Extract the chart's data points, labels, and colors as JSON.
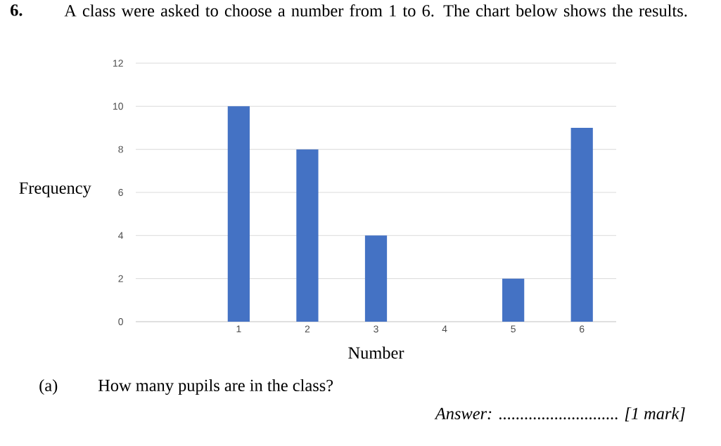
{
  "chart_data": {
    "type": "bar",
    "title": "A class were asked to choose a number from 1 to 6. The chart below shows the results.",
    "xlabel": "Number",
    "ylabel": "Frequency",
    "categories": [
      null,
      "1",
      "2",
      "3",
      "4",
      "5",
      "6"
    ],
    "values": [
      null,
      10,
      8,
      4,
      0,
      2,
      9
    ],
    "color": "#4472c4",
    "ylim": [
      0,
      12
    ],
    "yticks": [
      0,
      2,
      4,
      6,
      8,
      10,
      12
    ],
    "grid": "y",
    "annotations": [
      "6.",
      "(a)",
      "How many pupils are in the class?",
      "*Answer:* ............................ *[1 mark]*"
    ]
  }
}
